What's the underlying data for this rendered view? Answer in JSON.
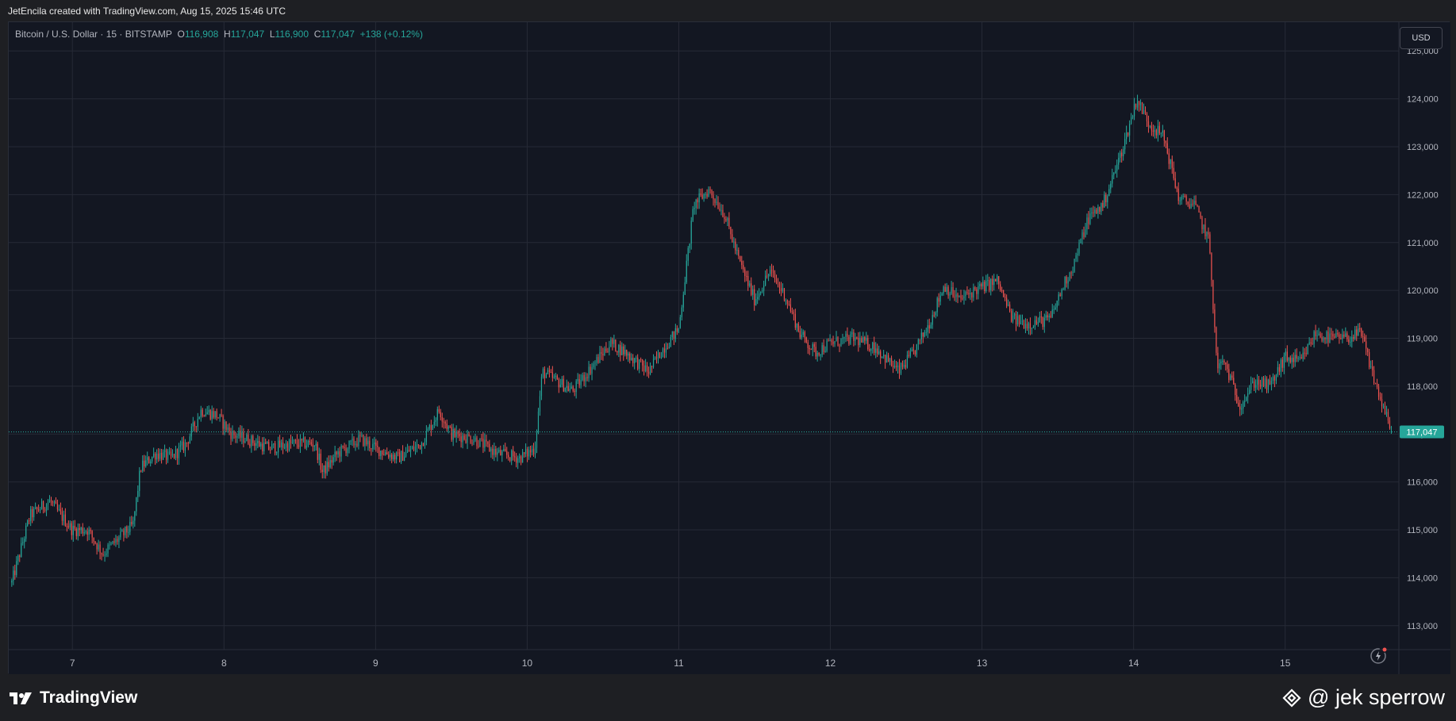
{
  "header": {
    "title": "JetEncila created with TradingView.com, Aug 15, 2025 15:46 UTC"
  },
  "legend": {
    "symbol": "Bitcoin / U.S. Dollar · 15 · BITSTAMP",
    "o_label": "O",
    "o_value": "116,908",
    "h_label": "H",
    "h_value": "117,047",
    "l_label": "L",
    "l_value": "116,900",
    "c_label": "C",
    "c_value": "117,047",
    "change": "+138 (+0.12%)"
  },
  "price_scale": {
    "currency": "USD",
    "last_price_label": "117,047"
  },
  "footer": {
    "brand": "TradingView",
    "credit": "@ jek sperrow"
  },
  "colors": {
    "background": "#131722",
    "grid": "#262a36",
    "up": "#26a69a",
    "down": "#ef5350",
    "last_price": "#26a69a"
  },
  "chart_data": {
    "type": "line",
    "style": "candlestick",
    "ylim": [
      112500,
      125600
    ],
    "xlim": [
      6.58,
      15.75
    ],
    "grid": true,
    "yticks": [
      113000,
      114000,
      115000,
      116000,
      117000,
      118000,
      119000,
      120000,
      121000,
      122000,
      123000,
      124000,
      125000
    ],
    "ytick_labels": [
      "113,000",
      "114,000",
      "115,000",
      "116,000",
      "117,000",
      "118,000",
      "119,000",
      "120,000",
      "121,000",
      "122,000",
      "123,000",
      "124,000",
      "125,000"
    ],
    "xticks": [
      7,
      8,
      9,
      10,
      11,
      12,
      13,
      14,
      15
    ],
    "xtick_labels": [
      "7",
      "8",
      "9",
      "10",
      "11",
      "12",
      "13",
      "14",
      "15"
    ],
    "last_price": 117047,
    "series": [
      {
        "name": "Bitcoin / U.S. Dollar",
        "x": [
          6.6,
          6.72,
          6.85,
          7.0,
          7.1,
          7.2,
          7.3,
          7.4,
          7.45,
          7.55,
          7.65,
          7.75,
          7.85,
          7.95,
          8.05,
          8.15,
          8.3,
          8.45,
          8.6,
          8.65,
          8.75,
          8.9,
          9.0,
          9.15,
          9.3,
          9.42,
          9.5,
          9.65,
          9.8,
          9.95,
          10.05,
          10.1,
          10.2,
          10.3,
          10.4,
          10.55,
          10.65,
          10.8,
          10.9,
          11.0,
          11.1,
          11.2,
          11.3,
          11.4,
          11.5,
          11.6,
          11.7,
          11.8,
          11.9,
          12.0,
          12.15,
          12.3,
          12.45,
          12.55,
          12.65,
          12.75,
          12.85,
          12.95,
          13.1,
          13.2,
          13.3,
          13.45,
          13.55,
          13.6,
          13.7,
          13.8,
          13.9,
          13.95,
          14.02,
          14.1,
          14.2,
          14.3,
          14.4,
          14.5,
          14.55,
          14.6,
          14.7,
          14.8,
          14.9,
          15.0,
          15.1,
          15.2,
          15.3,
          15.4,
          15.5,
          15.6,
          15.7
        ],
        "y": [
          113900,
          115300,
          115600,
          115000,
          115000,
          114500,
          114800,
          115100,
          116300,
          116600,
          116500,
          116800,
          117500,
          117400,
          117000,
          116900,
          116700,
          116800,
          116800,
          116200,
          116600,
          116900,
          116700,
          116500,
          116800,
          117500,
          117000,
          116900,
          116600,
          116500,
          116700,
          118300,
          118100,
          117900,
          118300,
          118900,
          118700,
          118300,
          118800,
          119200,
          121800,
          122100,
          121600,
          120600,
          119800,
          120400,
          119900,
          119100,
          118700,
          118900,
          119000,
          118800,
          118300,
          118700,
          119300,
          120100,
          119800,
          120000,
          120200,
          119400,
          119300,
          119400,
          120200,
          120500,
          121500,
          121800,
          122700,
          123200,
          124000,
          123500,
          123200,
          121900,
          121800,
          121000,
          118400,
          118500,
          117600,
          118100,
          118000,
          118600,
          118500,
          119100,
          119000,
          119000,
          119100,
          118000,
          117047
        ]
      }
    ]
  }
}
